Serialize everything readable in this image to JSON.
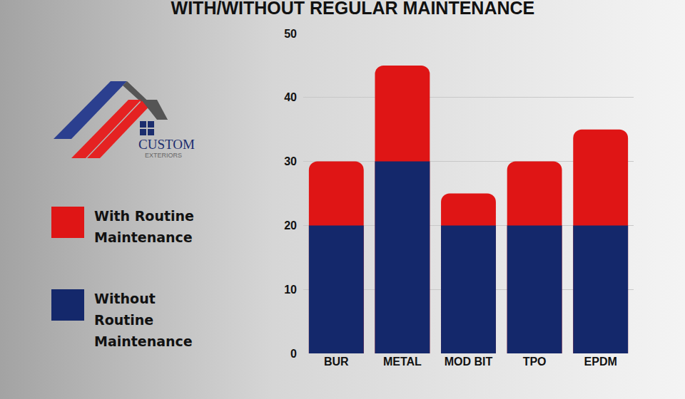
{
  "chart_data": {
    "type": "bar",
    "title": "WITH/WITHOUT REGULAR MAINTENANCE",
    "categories": [
      "BUR",
      "METAL",
      "MOD BIT",
      "TPO",
      "EPDM"
    ],
    "series": [
      {
        "name": "With Routine Maintenance",
        "color": "#df1515",
        "values": [
          30,
          45,
          25,
          30,
          35
        ]
      },
      {
        "name": "Without Routine Maintenance",
        "color": "#14286b",
        "values": [
          20,
          30,
          20,
          20,
          20
        ]
      }
    ],
    "stacked": false,
    "ylim": [
      0,
      50
    ],
    "yticks": [
      0,
      10,
      20,
      30,
      40,
      50
    ],
    "grid": true
  },
  "logo": {
    "name": "CUSTOM",
    "tagline": "EXTERIORS"
  }
}
